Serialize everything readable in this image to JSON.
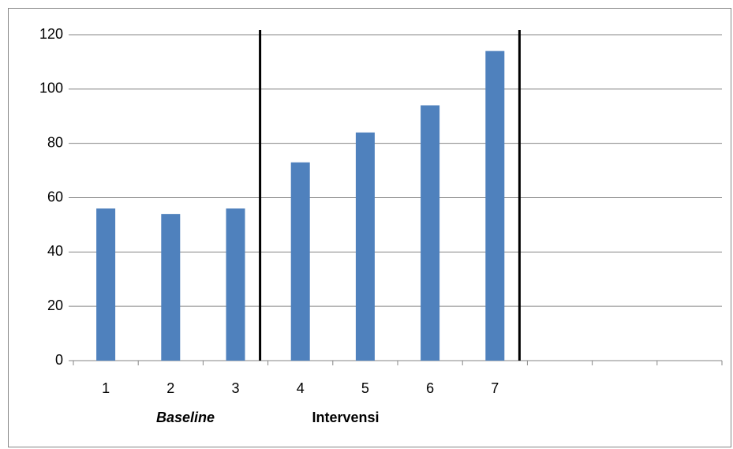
{
  "chart_data": {
    "type": "bar",
    "categories": [
      "1",
      "2",
      "3",
      "4",
      "5",
      "6",
      "7",
      null,
      null,
      null
    ],
    "values": [
      56,
      54,
      56,
      73,
      84,
      94,
      114,
      null,
      null,
      null
    ],
    "color": "#4f81bd",
    "ylim": [
      0,
      120
    ],
    "yticks": [
      0,
      20,
      40,
      60,
      80,
      100,
      120
    ],
    "grid": true,
    "annotations": [
      "Baseline",
      "Intervensi"
    ]
  }
}
